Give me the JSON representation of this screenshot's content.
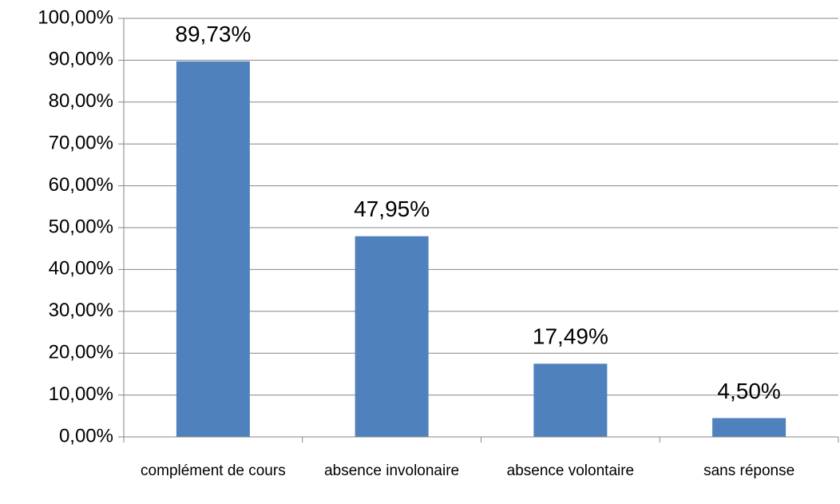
{
  "chart_data": {
    "type": "bar",
    "categories": [
      "complément de cours",
      "absence involonaire",
      "absence volontaire",
      "sans réponse"
    ],
    "values": [
      89.73,
      47.95,
      17.49,
      4.5
    ],
    "value_labels": [
      "89,73%",
      "47,95%",
      "17,49%",
      "4,50%"
    ],
    "color": "#4f81bd",
    "ylim": [
      0,
      100
    ],
    "yticks": [
      {
        "value": 0,
        "label": "0,00%"
      },
      {
        "value": 10,
        "label": "10,00%"
      },
      {
        "value": 20,
        "label": "20,00%"
      },
      {
        "value": 30,
        "label": "30,00%"
      },
      {
        "value": 40,
        "label": "40,00%"
      },
      {
        "value": 50,
        "label": "50,00%"
      },
      {
        "value": 60,
        "label": "60,00%"
      },
      {
        "value": 70,
        "label": "70,00%"
      },
      {
        "value": 80,
        "label": "80,00%"
      },
      {
        "value": 90,
        "label": "90,00%"
      },
      {
        "value": 100,
        "label": "100,00%"
      }
    ],
    "grid": true
  }
}
